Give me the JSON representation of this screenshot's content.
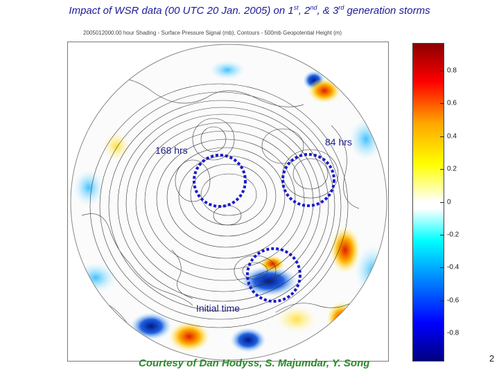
{
  "slide": {
    "title_parts": [
      "Impact of WSR data (00 UTC 20 Jan. 2005) on 1",
      "st",
      ", 2",
      "nd",
      ", & 3",
      "rd",
      " generation storms"
    ],
    "map_subtitle": "2005012000:00 hour Shading - Surface Pressure Signal (mb), Contours - 500mb Geopotential Height (m)",
    "labels": {
      "hrs168": "168 hrs",
      "hrs84": "84 hrs",
      "initial": "Initial time"
    },
    "credit": "Courtesy of Dan Hodyss, S. Majumdar, Y. Song",
    "page_number": "2"
  },
  "colorbar": {
    "ticks": [
      "0.8",
      "0.6",
      "0.4",
      "0.2",
      "0",
      "-0.2",
      "-0.4",
      "-0.6",
      "-0.8"
    ],
    "colors": [
      "#8b0000",
      "#ff0000",
      "#ffa500",
      "#ffff00",
      "#ffffff",
      "#00ffff",
      "#0080ff",
      "#0000ff",
      "#000080"
    ]
  },
  "annotation_color": "#1a1acc"
}
